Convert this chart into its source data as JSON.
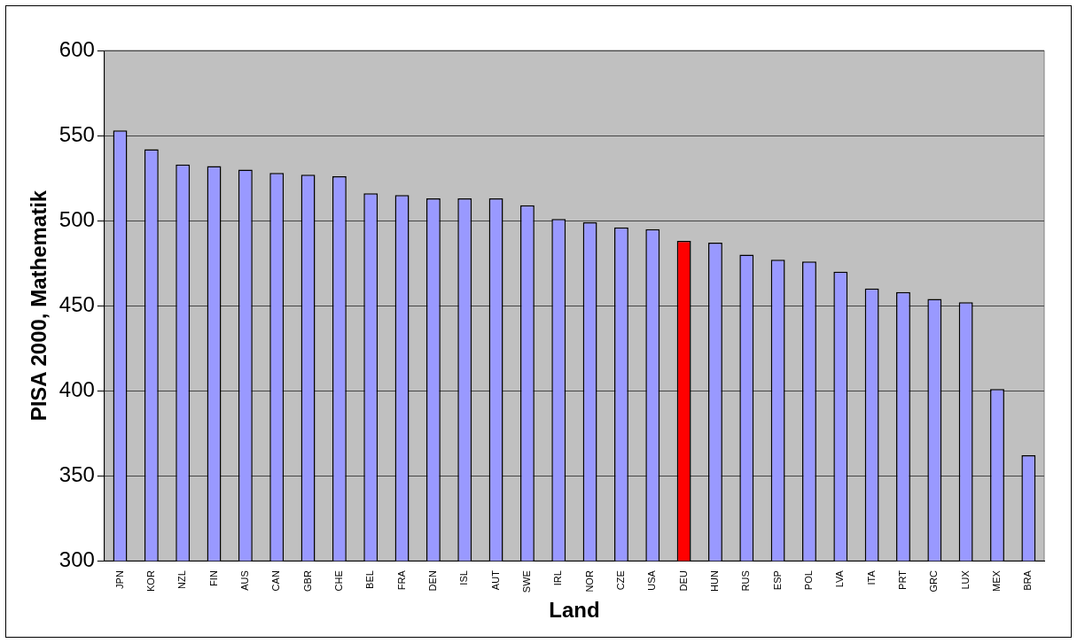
{
  "chart_data": {
    "type": "bar",
    "xlabel": "Land",
    "ylabel": "PISA 2000, Mathematik",
    "categories": [
      "JPN",
      "KOR",
      "NZL",
      "FIN",
      "AUS",
      "CAN",
      "GBR",
      "CHE",
      "BEL",
      "FRA",
      "DEN",
      "ISL",
      "AUT",
      "SWE",
      "IRL",
      "NOR",
      "CZE",
      "USA",
      "DEU",
      "HUN",
      "RUS",
      "ESP",
      "POL",
      "LVA",
      "ITA",
      "PRT",
      "GRC",
      "LUX",
      "MEX",
      "BRA"
    ],
    "values": [
      553,
      542,
      533,
      532,
      530,
      528,
      527,
      526,
      516,
      515,
      513,
      513,
      513,
      509,
      501,
      499,
      496,
      495,
      488,
      487,
      480,
      477,
      476,
      470,
      460,
      458,
      454,
      452,
      401,
      362
    ],
    "colors": [
      "#9999ff",
      "#9999ff",
      "#9999ff",
      "#9999ff",
      "#9999ff",
      "#9999ff",
      "#9999ff",
      "#9999ff",
      "#9999ff",
      "#9999ff",
      "#9999ff",
      "#9999ff",
      "#9999ff",
      "#9999ff",
      "#9999ff",
      "#9999ff",
      "#9999ff",
      "#9999ff",
      "#ff0000",
      "#9999ff",
      "#9999ff",
      "#9999ff",
      "#9999ff",
      "#9999ff",
      "#9999ff",
      "#9999ff",
      "#9999ff",
      "#9999ff",
      "#9999ff",
      "#9999ff"
    ],
    "ylim": [
      300,
      600
    ],
    "yticks": [
      300,
      350,
      400,
      450,
      500,
      550,
      600
    ],
    "grid": "y",
    "legend": false
  }
}
